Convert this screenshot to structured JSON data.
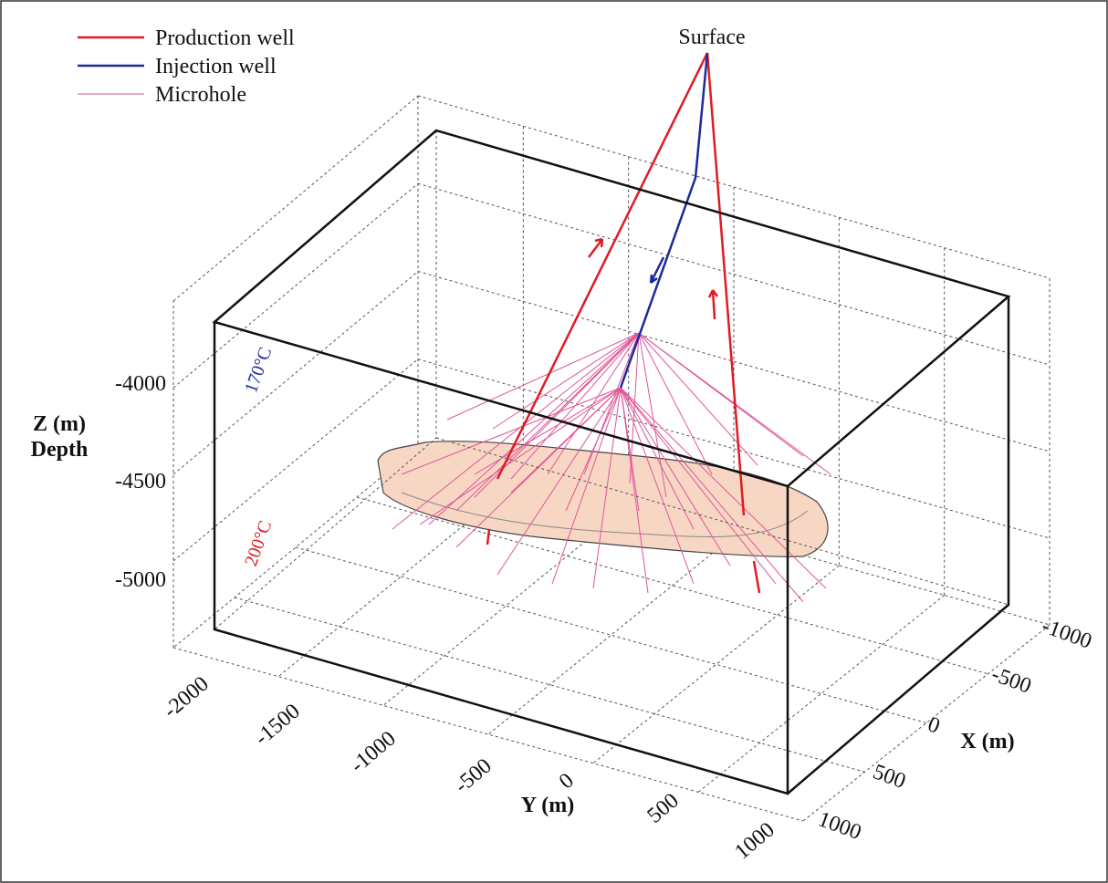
{
  "legend": {
    "items": [
      {
        "label": "Production well"
      },
      {
        "label": "Injection well"
      },
      {
        "label": "Microhole"
      }
    ]
  },
  "labels": {
    "surface": "Surface",
    "z_axis": "Z (m)",
    "z_axis_sub": "Depth",
    "y_axis": "Y (m)",
    "x_axis": "X (m)",
    "temp_top": "170°C",
    "temp_bottom": "200°C"
  },
  "z_ticks": [
    "-4000",
    "-4500",
    "-5000"
  ],
  "y_ticks": [
    "-2000",
    "-1500",
    "-1000",
    "-500",
    "0",
    "500",
    "1000"
  ],
  "x_ticks": [
    "-1000",
    "-500",
    "0",
    "500",
    "1000"
  ]
}
